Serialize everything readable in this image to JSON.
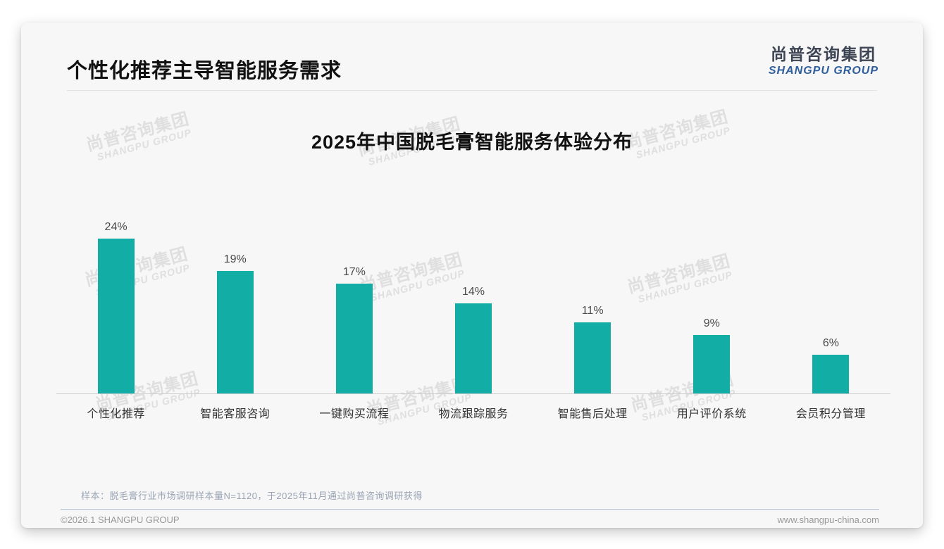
{
  "page": {
    "title": "个性化推荐主导智能服务需求",
    "logo": {
      "cn": "尚普咨询集团",
      "en": "SHANGPU GROUP"
    },
    "watermark": {
      "cn": "尚普咨询集团",
      "en": "SHANGPU GROUP"
    },
    "footnote": "样本：脱毛膏行业市场调研样本量N=1120，于2025年11月通过尚普咨询调研获得",
    "footer": {
      "copyright": "©2026.1 SHANGPU GROUP",
      "website": "www.shangpu-china.com"
    }
  },
  "chart_data": {
    "type": "bar",
    "title": "2025年中国脱毛膏智能服务体验分布",
    "categories": [
      "个性化推荐",
      "智能客服咨询",
      "一键购买流程",
      "物流跟踪服务",
      "智能售后处理",
      "用户评价系统",
      "会员积分管理"
    ],
    "values": [
      24,
      19,
      17,
      14,
      11,
      9,
      6
    ],
    "value_labels": [
      "24%",
      "19%",
      "17%",
      "14%",
      "11%",
      "9%",
      "6%"
    ],
    "unit": "%",
    "bar_color": "#12ADA5",
    "xlabel": "",
    "ylabel": "",
    "ylim": [
      0,
      26
    ],
    "grid": false,
    "legend": false,
    "value_labels_position": "above-bars",
    "axis_line_color": "#cccccc"
  }
}
